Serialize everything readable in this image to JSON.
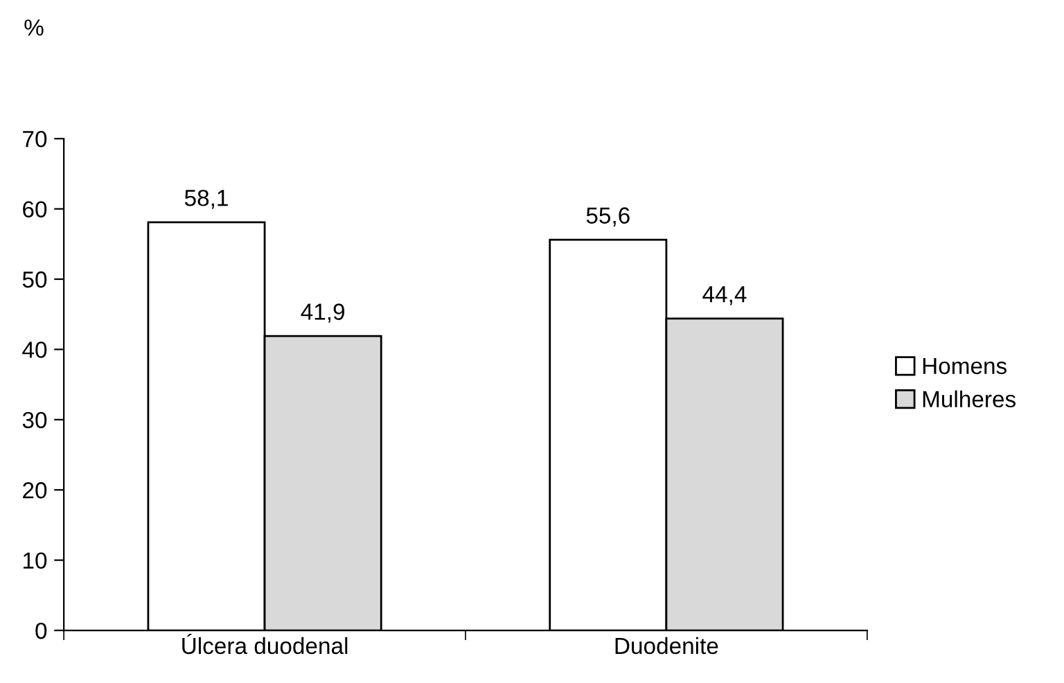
{
  "chart_data": {
    "type": "bar",
    "ylabel": "%",
    "categories": [
      "Úlcera duodenal",
      "Duodenite"
    ],
    "series": [
      {
        "name": "Homens",
        "color": "#ffffff",
        "values": [
          58.1,
          55.6
        ],
        "value_labels": [
          "58,1",
          "55,6"
        ]
      },
      {
        "name": "Mulheres",
        "color": "#d9d9d9",
        "values": [
          41.9,
          44.4
        ],
        "value_labels": [
          "41,9",
          "44,4"
        ]
      }
    ],
    "ylim": [
      0,
      70
    ],
    "yticks": [
      0,
      10,
      20,
      30,
      40,
      50,
      60,
      70
    ],
    "grid": false,
    "legend": "right"
  }
}
